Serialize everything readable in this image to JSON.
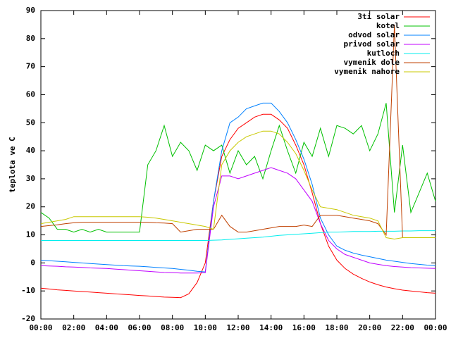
{
  "chart_data": {
    "type": "line",
    "y_label": "teplota ve C",
    "x": [
      0,
      0.5,
      1,
      1.5,
      2,
      2.5,
      3,
      3.5,
      4,
      4.5,
      5,
      5.5,
      6,
      6.5,
      7,
      7.5,
      8,
      8.5,
      9,
      9.5,
      10,
      10.5,
      11,
      11.5,
      12,
      12.5,
      13,
      13.5,
      14,
      14.5,
      15,
      15.5,
      16,
      16.5,
      17,
      17.5,
      18,
      18.5,
      19,
      19.5,
      20,
      20.5,
      21,
      21.5,
      22,
      22.5,
      23,
      23.5,
      24
    ],
    "xlim": [
      0,
      24
    ],
    "xticks": [
      {
        "value": 0,
        "label": "00:00"
      },
      {
        "value": 2,
        "label": "02:00"
      },
      {
        "value": 4,
        "label": "04:00"
      },
      {
        "value": 6,
        "label": "06:00"
      },
      {
        "value": 8,
        "label": "08:00"
      },
      {
        "value": 10,
        "label": "10:00"
      },
      {
        "value": 12,
        "label": "12:00"
      },
      {
        "value": 14,
        "label": "14:00"
      },
      {
        "value": 16,
        "label": "16:00"
      },
      {
        "value": 18,
        "label": "18:00"
      },
      {
        "value": 20,
        "label": "20:00"
      },
      {
        "value": 22,
        "label": "22:00"
      },
      {
        "value": 24,
        "label": "00:00"
      }
    ],
    "ylim": [
      -20,
      90
    ],
    "yticks": [
      -20,
      -10,
      0,
      10,
      20,
      30,
      40,
      50,
      60,
      70,
      80,
      90
    ],
    "legend": "top-right",
    "series": [
      {
        "name": "3ti solar",
        "color": "#ff0000",
        "values": [
          -9,
          -9.3,
          -9.6,
          -9.8,
          -10,
          -10.2,
          -10.4,
          -10.6,
          -10.8,
          -11,
          -11.2,
          -11.4,
          -11.6,
          -11.8,
          -12,
          -12.2,
          -12.3,
          -12.4,
          -11,
          -7,
          0,
          22,
          38,
          44,
          48,
          50,
          52,
          53,
          53,
          51,
          48,
          42,
          35,
          25,
          14,
          6,
          1,
          -2,
          -4,
          -5.5,
          -6.8,
          -7.8,
          -8.6,
          -9.2,
          -9.7,
          -10,
          -10.3,
          -10.6,
          -10.8
        ]
      },
      {
        "name": "kotel",
        "color": "#00c000",
        "values": [
          18,
          16,
          12,
          12,
          11,
          12,
          11,
          12,
          11,
          11,
          11,
          11,
          11,
          35,
          40,
          49,
          38,
          43,
          40,
          33,
          42,
          40,
          42,
          32,
          40,
          35,
          38,
          30,
          40,
          49,
          40,
          32,
          43,
          38,
          48,
          38,
          49,
          48,
          46,
          49,
          40,
          46,
          57,
          18,
          42,
          18,
          25,
          32,
          22
        ]
      },
      {
        "name": "odvod solar",
        "color": "#0080ff",
        "values": [
          1,
          0.8,
          0.6,
          0.4,
          0.2,
          0,
          -0.2,
          -0.4,
          -0.6,
          -0.8,
          -1,
          -1.1,
          -1.2,
          -1.4,
          -1.6,
          -1.8,
          -2,
          -2.3,
          -2.6,
          -3,
          -3.2,
          22,
          40,
          50,
          52,
          55,
          56,
          57,
          57,
          54,
          50,
          44,
          37,
          28,
          16,
          10,
          6,
          4.5,
          3.5,
          2.8,
          2.2,
          1.6,
          1,
          0.6,
          0.2,
          -0.2,
          -0.5,
          -0.8,
          -1
        ]
      },
      {
        "name": "privod solar",
        "color": "#c000ff",
        "values": [
          -1,
          -1.1,
          -1.2,
          -1.4,
          -1.5,
          -1.6,
          -1.8,
          -1.9,
          -2,
          -2.2,
          -2.4,
          -2.6,
          -2.8,
          -3,
          -3.2,
          -3.4,
          -3.5,
          -3.6,
          -3.6,
          -3.6,
          -3.5,
          20,
          31,
          31,
          30,
          31,
          32,
          33,
          34,
          33,
          32,
          30,
          26,
          22,
          14,
          8,
          5,
          3,
          2,
          1,
          0,
          -0.5,
          -1,
          -1.3,
          -1.5,
          -1.7,
          -1.8,
          -1.9,
          -2
        ]
      },
      {
        "name": "kutloch",
        "color": "#00eeee",
        "values": [
          8,
          8,
          8,
          8,
          8,
          8,
          8,
          8,
          8,
          8,
          8,
          8,
          8,
          8,
          8,
          8,
          8,
          8,
          8,
          8,
          8,
          8.1,
          8.2,
          8.4,
          8.6,
          8.8,
          9,
          9.2,
          9.5,
          9.8,
          10,
          10.2,
          10.4,
          10.6,
          10.8,
          11,
          11,
          11.1,
          11.2,
          11.2,
          11.2,
          11.3,
          11.3,
          11.3,
          11.4,
          11.4,
          11.5,
          11.5,
          11.5
        ]
      },
      {
        "name": "vymenik dole",
        "color": "#c04000",
        "values": [
          13,
          13.3,
          13.6,
          14,
          14.3,
          14.5,
          14.5,
          14.5,
          14.5,
          14.5,
          14.5,
          14.5,
          14.5,
          14.5,
          14.3,
          14.2,
          14,
          11,
          11.5,
          12,
          12,
          12,
          17,
          13,
          11,
          11,
          11.5,
          12,
          12.5,
          13,
          13,
          13,
          13.5,
          13,
          17,
          17,
          17,
          16.5,
          16,
          15.5,
          15,
          14,
          10,
          85,
          9,
          9,
          9,
          9,
          9
        ]
      },
      {
        "name": "vymenik nahore",
        "color": "#c8c800",
        "values": [
          14,
          14.5,
          15,
          15.5,
          16.5,
          16.5,
          16.5,
          16.5,
          16.5,
          16.5,
          16.5,
          16.5,
          16.5,
          16.3,
          16,
          15.5,
          15,
          14.5,
          14,
          13.5,
          13,
          12,
          35,
          40,
          43,
          45,
          46,
          47,
          47,
          46,
          43,
          39,
          33,
          26,
          20,
          19.5,
          19,
          18,
          17,
          16.5,
          16,
          15,
          9,
          8.5,
          9,
          9,
          9,
          9,
          9
        ]
      }
    ]
  }
}
